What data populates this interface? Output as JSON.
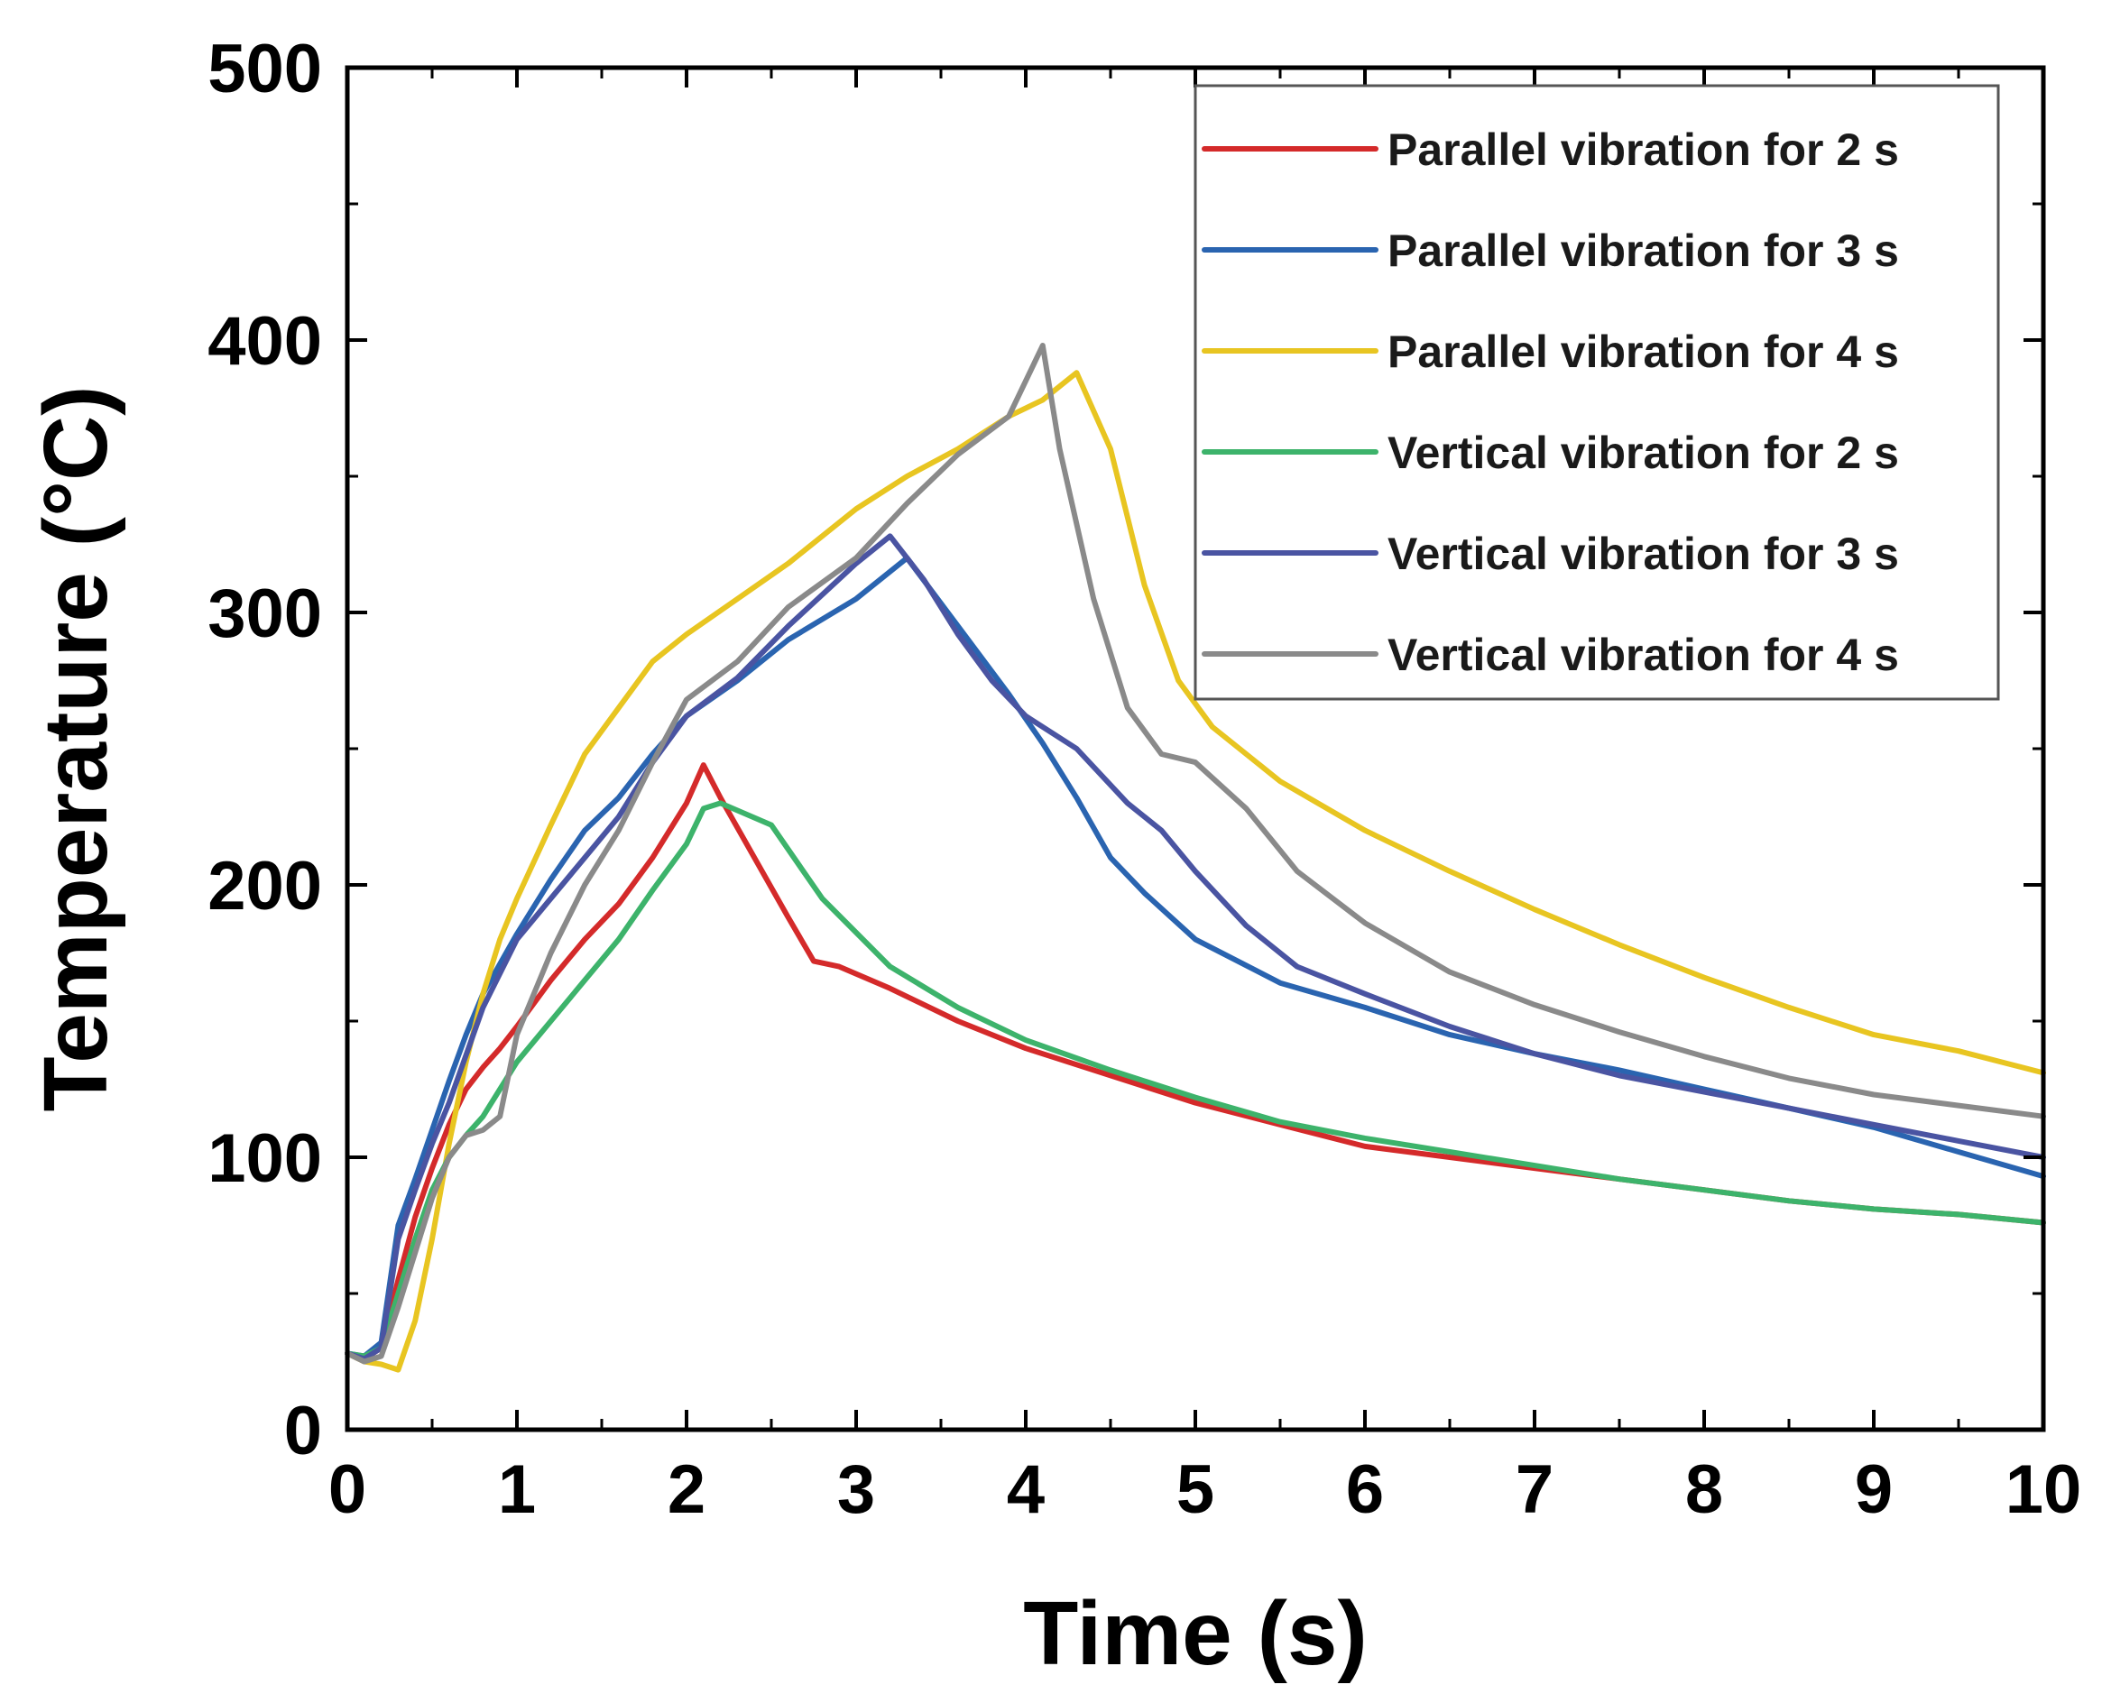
{
  "chart_data": {
    "type": "line",
    "title": "",
    "xlabel": "Time (s)",
    "ylabel": "Temperature (°C)",
    "xlim": [
      0,
      10
    ],
    "ylim": [
      0,
      500
    ],
    "xticks": [
      0,
      1,
      2,
      3,
      4,
      5,
      6,
      7,
      8,
      9,
      10
    ],
    "yticks": [
      0,
      100,
      200,
      300,
      400,
      500
    ],
    "xtick_labels": [
      "0",
      "1",
      "2",
      "3",
      "4",
      "5",
      "6",
      "7",
      "8",
      "9",
      "10"
    ],
    "ytick_labels": [
      "0",
      "100",
      "200",
      "300",
      "400",
      "500"
    ],
    "grid": false,
    "legend_position": "top-right",
    "series": [
      {
        "name": "Parallel vibration for 2 s",
        "color": "#d42a2a",
        "x": [
          0,
          0.1,
          0.2,
          0.3,
          0.4,
          0.5,
          0.6,
          0.7,
          0.8,
          0.9,
          1.0,
          1.2,
          1.4,
          1.6,
          1.8,
          2.0,
          2.1,
          2.2,
          2.4,
          2.6,
          2.75,
          2.9,
          3.2,
          3.6,
          4.0,
          4.5,
          5.0,
          5.5,
          6.0,
          6.5,
          7.0,
          7.5,
          8.0,
          8.5,
          9.0,
          9.5,
          10.0
        ],
        "values": [
          28,
          26,
          30,
          55,
          78,
          96,
          112,
          125,
          133,
          140,
          148,
          165,
          180,
          193,
          210,
          230,
          244,
          232,
          210,
          188,
          172,
          170,
          162,
          150,
          140,
          130,
          120,
          112,
          104,
          100,
          96,
          92,
          88,
          84,
          81,
          79,
          76
        ]
      },
      {
        "name": "Parallel vibration for 3 s",
        "color": "#2a64b0",
        "x": [
          0,
          0.1,
          0.2,
          0.3,
          0.4,
          0.5,
          0.6,
          0.7,
          0.8,
          1.0,
          1.2,
          1.4,
          1.6,
          1.8,
          2.0,
          2.3,
          2.6,
          3.0,
          3.3,
          3.6,
          3.9,
          4.1,
          4.3,
          4.5,
          4.7,
          5.0,
          5.5,
          6.0,
          6.5,
          7.0,
          7.5,
          8.0,
          8.5,
          9.0,
          9.5,
          10.0
        ],
        "values": [
          28,
          27,
          32,
          75,
          92,
          110,
          128,
          145,
          160,
          182,
          202,
          220,
          232,
          248,
          262,
          275,
          290,
          305,
          320,
          295,
          270,
          252,
          232,
          210,
          197,
          180,
          164,
          155,
          145,
          138,
          132,
          125,
          118,
          111,
          102,
          93
        ]
      },
      {
        "name": "Parallel vibration for 4 s",
        "color": "#e8c521",
        "x": [
          0,
          0.1,
          0.2,
          0.3,
          0.4,
          0.5,
          0.6,
          0.7,
          0.8,
          0.9,
          1.0,
          1.2,
          1.4,
          1.6,
          1.8,
          2.0,
          2.3,
          2.6,
          3.0,
          3.3,
          3.6,
          3.9,
          4.1,
          4.3,
          4.5,
          4.7,
          4.9,
          5.1,
          5.5,
          6.0,
          6.5,
          7.0,
          7.5,
          8.0,
          8.5,
          9.0,
          9.5,
          10.0
        ],
        "values": [
          28,
          25,
          24,
          22,
          40,
          70,
          105,
          135,
          160,
          180,
          195,
          222,
          248,
          265,
          282,
          292,
          305,
          318,
          338,
          350,
          360,
          372,
          378,
          388,
          360,
          310,
          275,
          258,
          238,
          220,
          205,
          191,
          178,
          166,
          155,
          145,
          139,
          131
        ]
      },
      {
        "name": "Vertical vibration for 2 s",
        "color": "#3db36b",
        "x": [
          0,
          0.1,
          0.2,
          0.3,
          0.4,
          0.5,
          0.6,
          0.7,
          0.8,
          0.9,
          1.0,
          1.2,
          1.4,
          1.6,
          1.8,
          2.0,
          2.1,
          2.2,
          2.5,
          2.8,
          3.2,
          3.6,
          4.0,
          4.5,
          5.0,
          5.5,
          6.0,
          6.5,
          7.0,
          7.5,
          8.0,
          8.5,
          9.0,
          9.5,
          10.0
        ],
        "values": [
          28,
          27,
          30,
          50,
          70,
          88,
          100,
          108,
          115,
          125,
          135,
          150,
          165,
          180,
          198,
          215,
          228,
          230,
          222,
          195,
          170,
          155,
          143,
          132,
          122,
          113,
          107,
          102,
          97,
          92,
          88,
          84,
          81,
          79,
          76
        ]
      },
      {
        "name": "Vertical vibration for 3 s",
        "color": "#4a54a2",
        "x": [
          0,
          0.1,
          0.2,
          0.3,
          0.4,
          0.5,
          0.6,
          0.8,
          1.0,
          1.2,
          1.4,
          1.6,
          1.8,
          2.0,
          2.3,
          2.6,
          3.0,
          3.2,
          3.4,
          3.6,
          3.8,
          4.0,
          4.3,
          4.6,
          4.8,
          5.0,
          5.3,
          5.6,
          6.0,
          6.5,
          7.0,
          7.5,
          8.0,
          8.5,
          9.0,
          9.5,
          10.0
        ],
        "values": [
          28,
          26,
          30,
          70,
          88,
          105,
          120,
          155,
          180,
          195,
          210,
          225,
          245,
          262,
          276,
          295,
          318,
          328,
          312,
          292,
          275,
          262,
          250,
          230,
          220,
          205,
          185,
          170,
          160,
          148,
          138,
          130,
          124,
          118,
          112,
          106,
          100
        ]
      },
      {
        "name": "Vertical vibration for 4 s",
        "color": "#8a8a8a",
        "x": [
          0,
          0.1,
          0.2,
          0.3,
          0.4,
          0.5,
          0.6,
          0.7,
          0.8,
          0.9,
          1.0,
          1.2,
          1.4,
          1.6,
          1.8,
          2.0,
          2.3,
          2.6,
          3.0,
          3.3,
          3.6,
          3.9,
          4.1,
          4.2,
          4.4,
          4.6,
          4.8,
          5.0,
          5.3,
          5.6,
          6.0,
          6.5,
          7.0,
          7.5,
          8.0,
          8.5,
          9.0,
          9.5,
          10.0
        ],
        "values": [
          28,
          25,
          27,
          45,
          65,
          85,
          100,
          108,
          110,
          115,
          145,
          175,
          200,
          220,
          245,
          268,
          282,
          302,
          320,
          340,
          358,
          372,
          398,
          360,
          305,
          265,
          248,
          245,
          228,
          205,
          186,
          168,
          156,
          146,
          137,
          129,
          123,
          119,
          115
        ]
      }
    ]
  }
}
